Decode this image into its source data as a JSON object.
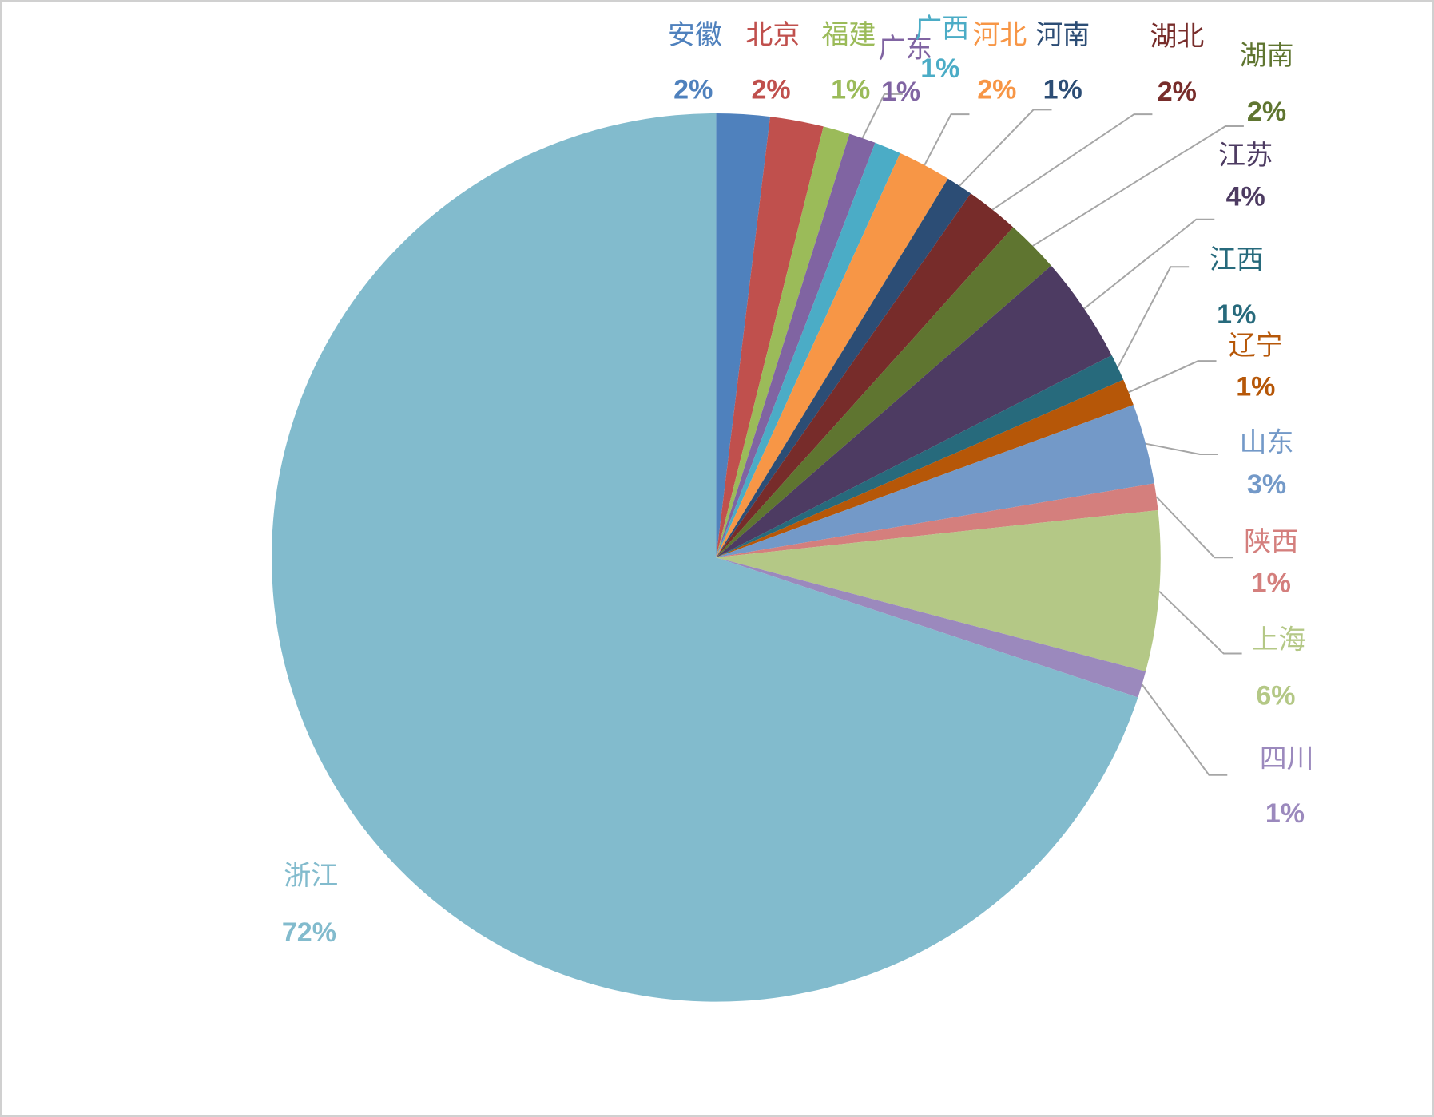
{
  "chart_data": {
    "type": "pie",
    "categories": [
      "安徽",
      "北京",
      "福建",
      "广东",
      "广西",
      "河北",
      "河南",
      "湖北",
      "湖南",
      "江苏",
      "江西",
      "辽宁",
      "山东",
      "陕西",
      "上海",
      "四川",
      "浙江"
    ],
    "values": [
      2,
      2,
      1,
      1,
      1,
      2,
      1,
      2,
      2,
      4,
      1,
      1,
      3,
      1,
      6,
      1,
      72
    ],
    "value_labels": [
      "2%",
      "2%",
      "1%",
      "1%",
      "1%",
      "2%",
      "1%",
      "2%",
      "2%",
      "4%",
      "1%",
      "1%",
      "3%",
      "1%",
      "6%",
      "1%",
      "72%"
    ],
    "colors": [
      "#4f81bd",
      "#c0504d",
      "#9bbb59",
      "#8064a2",
      "#4bacc6",
      "#f79646",
      "#2c4d75",
      "#772c2a",
      "#5f7530",
      "#4d3b62",
      "#276a7c",
      "#b65708",
      "#7399c8",
      "#d47f7d",
      "#b4c886",
      "#9b89bd",
      "#82bbcd"
    ]
  }
}
